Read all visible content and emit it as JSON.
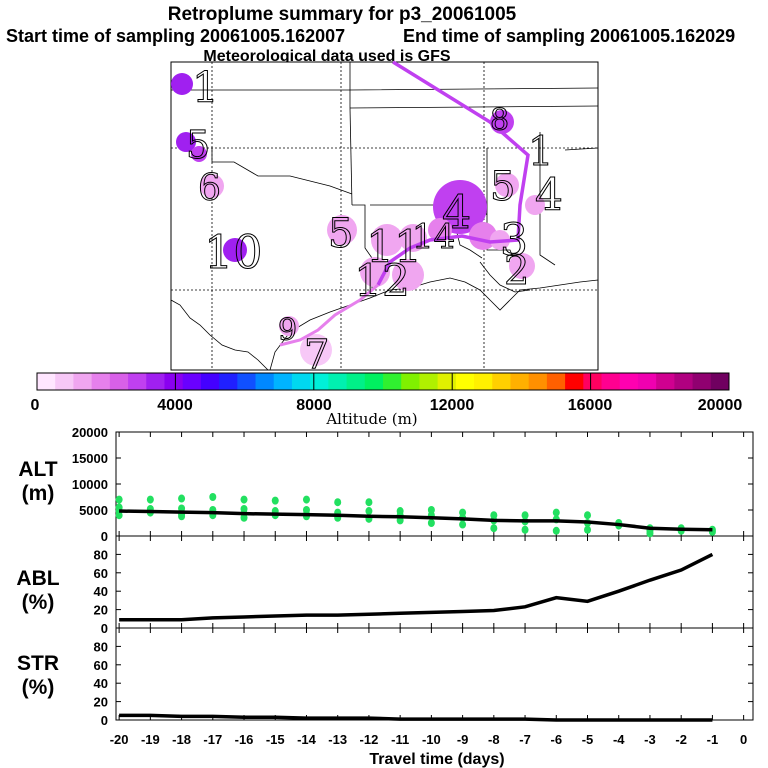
{
  "header": {
    "title": "Retroplume summary for p3_20061005",
    "start": "Start time of sampling 20061005.162007",
    "end": "End time of sampling 20061005.162029",
    "met": "Meteorological data used is GFS"
  },
  "colorbar": {
    "ticks": [
      "0",
      "4000",
      "8000",
      "12000",
      "16000",
      "20000"
    ],
    "label": "Altitude (m)",
    "colors": [
      "#ffe6ff",
      "#f7c8f7",
      "#f0a6f0",
      "#e680ec",
      "#d860e8",
      "#c040f0",
      "#a020f0",
      "#8a00f0",
      "#6a00ff",
      "#4400ff",
      "#2020ff",
      "#1050ff",
      "#0088ff",
      "#00b4ff",
      "#00d8f0",
      "#00f0d8",
      "#00f0b0",
      "#00f088",
      "#00f060",
      "#30f030",
      "#80f000",
      "#b0f000",
      "#e0f000",
      "#ffff00",
      "#fff000",
      "#ffd000",
      "#ffb000",
      "#ff9000",
      "#ff6000",
      "#ff0000",
      "#ff0060",
      "#ff0090",
      "#ff00b0",
      "#f000b0",
      "#d00090",
      "#b00080",
      "#900070",
      "#700060"
    ]
  },
  "map": {
    "labels": [
      "1",
      "5",
      "6",
      "10",
      "5",
      "11",
      "12",
      "4",
      "5",
      "4",
      "3",
      "2",
      "9",
      "7",
      "8",
      "14",
      "1"
    ]
  },
  "chart_data": [
    {
      "type": "scatter",
      "panel": "ALT",
      "ylabel": "ALT (m)",
      "ylim": [
        0,
        20000
      ],
      "yticks": [
        "0",
        "5000",
        "10000",
        "15000",
        "20000"
      ],
      "points_color": "#22e060",
      "line": {
        "x": [
          -20,
          -19,
          -18,
          -17,
          -16,
          -15,
          -14,
          -13,
          -12,
          -11,
          -10,
          -9,
          -8,
          -7,
          -6,
          -5,
          -4,
          -3,
          -2,
          -1
        ],
        "y": [
          4800,
          4700,
          4600,
          4500,
          4300,
          4200,
          4100,
          4000,
          3800,
          3700,
          3500,
          3300,
          3000,
          2900,
          2900,
          2700,
          2200,
          1500,
          1300,
          1200
        ]
      },
      "scatter": [
        {
          "x": -20,
          "y": [
            7000,
            5500,
            4800,
            4000
          ]
        },
        {
          "x": -19,
          "y": [
            7000,
            5200,
            4500
          ]
        },
        {
          "x": -18,
          "y": [
            7200,
            5300,
            4200,
            3800
          ]
        },
        {
          "x": -17,
          "y": [
            7500,
            5000,
            4000
          ]
        },
        {
          "x": -16,
          "y": [
            7000,
            5200,
            4300,
            3500
          ]
        },
        {
          "x": -15,
          "y": [
            6800,
            4800,
            4000
          ]
        },
        {
          "x": -14,
          "y": [
            7000,
            5000,
            4200,
            3800
          ]
        },
        {
          "x": -13,
          "y": [
            6500,
            4500,
            3500
          ]
        },
        {
          "x": -12,
          "y": [
            6500,
            4800,
            3300
          ]
        },
        {
          "x": -11,
          "y": [
            4800,
            4000,
            3000
          ]
        },
        {
          "x": -10,
          "y": [
            5000,
            4000,
            2500
          ]
        },
        {
          "x": -9,
          "y": [
            4500,
            3500,
            2200
          ]
        },
        {
          "x": -8,
          "y": [
            4000,
            3000,
            1500
          ]
        },
        {
          "x": -7,
          "y": [
            4000,
            2800,
            1200
          ]
        },
        {
          "x": -6,
          "y": [
            4500,
            3200,
            1000
          ]
        },
        {
          "x": -5,
          "y": [
            4000,
            2500,
            1200
          ]
        },
        {
          "x": -4,
          "y": [
            2500,
            2000
          ]
        },
        {
          "x": -3,
          "y": [
            1500,
            1000,
            500
          ]
        },
        {
          "x": -2,
          "y": [
            1500,
            1000
          ]
        },
        {
          "x": -1,
          "y": [
            1200,
            800
          ]
        }
      ]
    },
    {
      "type": "line",
      "panel": "ABL",
      "ylabel": "ABL (%)",
      "ylim": [
        0,
        100
      ],
      "yticks": [
        "0",
        "20",
        "40",
        "60",
        "80"
      ],
      "x": [
        -20,
        -19,
        -18,
        -17,
        -16,
        -15,
        -14,
        -13,
        -12,
        -11,
        -10,
        -9,
        -8,
        -7,
        -6,
        -5,
        -4,
        -3,
        -2,
        -1
      ],
      "y": [
        9,
        9,
        9,
        11,
        12,
        13,
        14,
        14,
        15,
        16,
        17,
        18,
        19,
        23,
        33,
        29,
        40,
        52,
        63,
        80
      ]
    },
    {
      "type": "line",
      "panel": "STR",
      "ylabel": "STR (%)",
      "ylim": [
        0,
        100
      ],
      "yticks": [
        "0",
        "20",
        "40",
        "60",
        "80"
      ],
      "x": [
        -20,
        -19,
        -18,
        -17,
        -16,
        -15,
        -14,
        -13,
        -12,
        -11,
        -10,
        -9,
        -8,
        -7,
        -6,
        -5,
        -4,
        -3,
        -2,
        -1
      ],
      "y": [
        5,
        5,
        4,
        4,
        3,
        3,
        2,
        2,
        2,
        1,
        1,
        1,
        1,
        1,
        0,
        0,
        0,
        0,
        0,
        0
      ]
    }
  ],
  "xaxis": {
    "label": "Travel time (days)",
    "ticks": [
      "-20",
      "-19",
      "-18",
      "-17",
      "-16",
      "-15",
      "-14",
      "-13",
      "-12",
      "-11",
      "-10",
      "-9",
      "-8",
      "-7",
      "-6",
      "-5",
      "-4",
      "-3",
      "-2",
      "-1",
      "0"
    ]
  },
  "panels": {
    "alt": {
      "label1": "ALT",
      "label2": "(m)"
    },
    "abl": {
      "label1": "ABL",
      "label2": "(%)"
    },
    "str": {
      "label1": "STR",
      "label2": "(%)"
    }
  }
}
